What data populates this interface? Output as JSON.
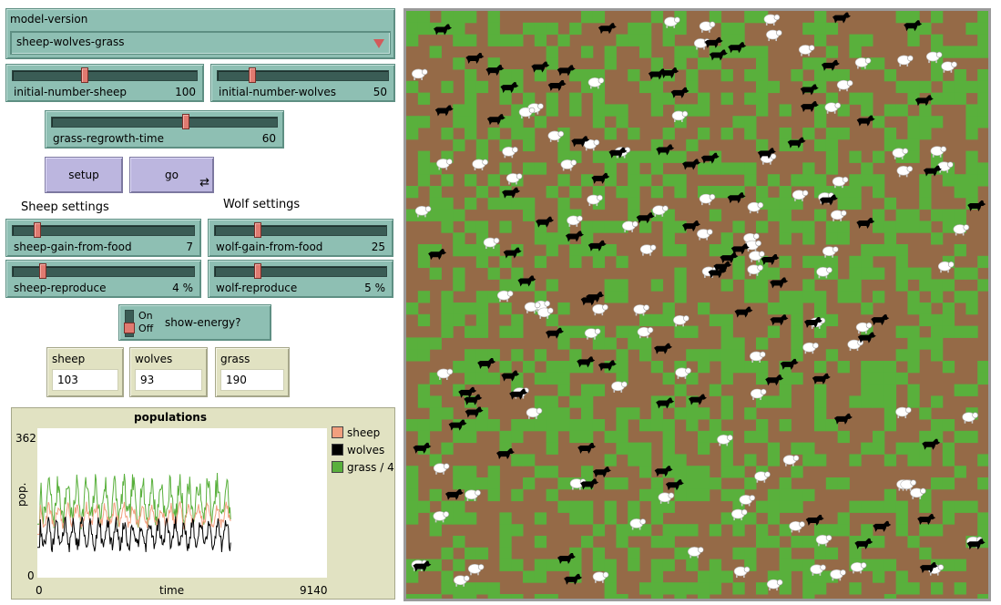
{
  "chooser": {
    "label": "model-version",
    "value": "sheep-wolves-grass"
  },
  "sliders": {
    "initial_number_sheep": {
      "label": "initial-number-sheep",
      "value": "100",
      "fraction": 0.33
    },
    "initial_number_wolves": {
      "label": "initial-number-wolves",
      "value": "50",
      "fraction": 0.2
    },
    "grass_regrowth_time": {
      "label": "grass-regrowth-time",
      "value": "60",
      "fraction": 0.6
    },
    "sheep_gain_from_food": {
      "label": "sheep-gain-from-food",
      "value": "7",
      "fraction": 0.1
    },
    "wolf_gain_from_food": {
      "label": "wolf-gain-from-food",
      "value": "25",
      "fraction": 0.25
    },
    "sheep_reproduce": {
      "label": "sheep-reproduce",
      "value": "4 %",
      "fraction": 0.18
    },
    "wolf_reproduce": {
      "label": "wolf-reproduce",
      "value": "5 %",
      "fraction": 0.25
    }
  },
  "buttons": {
    "setup": "setup",
    "go": "go",
    "forever_icon": "⇄"
  },
  "notes": {
    "sheep_settings": "Sheep settings",
    "wolf_settings": "Wolf settings"
  },
  "switch": {
    "on": "On",
    "off": "Off",
    "label": "show-energy?",
    "state": "off"
  },
  "monitors": {
    "sheep": {
      "label": "sheep",
      "value": "103"
    },
    "wolves": {
      "label": "wolves",
      "value": "93"
    },
    "grass": {
      "label": "grass",
      "value": "190"
    }
  },
  "colors": {
    "sheep_series": "#f19f7e",
    "wolves_series": "#000000",
    "grass_series": "#59b03c",
    "world_dirt": "#956a47",
    "world_grass": "#59b03c"
  },
  "chart_data": {
    "type": "line",
    "title": "populations",
    "xlabel": "time",
    "ylabel": "pop.",
    "xlim": [
      0,
      9140
    ],
    "ylim": [
      0,
      362
    ],
    "x_tick_labels": [
      "0",
      "9140"
    ],
    "y_tick_labels": [
      "0",
      "362"
    ],
    "legend_position": "right",
    "series": [
      {
        "name": "sheep",
        "color": "#f19f7e",
        "pattern": "oscillating",
        "mean": 150,
        "amplitude": 35,
        "x_end": 6100
      },
      {
        "name": "wolves",
        "color": "#000000",
        "pattern": "oscillating",
        "mean": 105,
        "amplitude": 45,
        "x_end": 6100
      },
      {
        "name": "grass / 4",
        "color": "#59b03c",
        "pattern": "oscillating",
        "mean": 185,
        "amplitude": 70,
        "x_end": 6100
      }
    ]
  },
  "world": {
    "icons": {
      "sheep": "sheep-icon",
      "wolf": "wolf-icon",
      "grass": "grass-patch"
    }
  }
}
